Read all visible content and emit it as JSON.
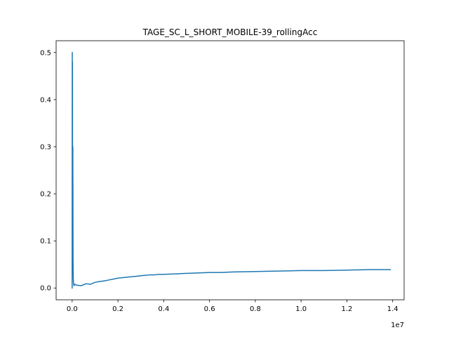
{
  "chart_data": {
    "type": "line",
    "title": "TAGE_SC_L_SHORT_MOBILE-39_rollingAcc",
    "xlabel": "",
    "ylabel": "",
    "x_offset_label": "1e7",
    "xlim": [
      -0.07,
      1.45
    ],
    "ylim": [
      -0.025,
      0.525
    ],
    "x_ticks": [
      0.0,
      0.2,
      0.4,
      0.6,
      0.8,
      1.0,
      1.2,
      1.4
    ],
    "x_tick_labels": [
      "0.0",
      "0.2",
      "0.4",
      "0.6",
      "0.8",
      "1.0",
      "1.2",
      "1.4"
    ],
    "y_ticks": [
      0.0,
      0.1,
      0.2,
      0.3,
      0.4,
      0.5
    ],
    "y_tick_labels": [
      "0.0",
      "0.1",
      "0.2",
      "0.3",
      "0.4",
      "0.5"
    ],
    "grid": false,
    "series": [
      {
        "color": "#1f77b4",
        "x": [
          0.0,
          0.0005,
          0.001,
          0.0015,
          0.002,
          0.003,
          0.004,
          0.005,
          0.006,
          0.008,
          0.012,
          0.02,
          0.04,
          0.06,
          0.08,
          0.1,
          0.12,
          0.14,
          0.16,
          0.18,
          0.2,
          0.22,
          0.24,
          0.26,
          0.28,
          0.3,
          0.32,
          0.34,
          0.36,
          0.38,
          0.4,
          0.45,
          0.5,
          0.55,
          0.6,
          0.65,
          0.7,
          0.8,
          0.9,
          1.0,
          1.1,
          1.2,
          1.3,
          1.39
        ],
        "y": [
          0.0,
          0.5,
          0.2,
          0.48,
          0.1,
          0.3,
          0.06,
          0.02,
          0.01,
          0.005,
          0.008,
          0.006,
          0.005,
          0.009,
          0.008,
          0.012,
          0.014,
          0.015,
          0.017,
          0.019,
          0.021,
          0.022,
          0.023,
          0.024,
          0.025,
          0.026,
          0.027,
          0.028,
          0.028,
          0.029,
          0.029,
          0.03,
          0.031,
          0.032,
          0.033,
          0.033,
          0.034,
          0.035,
          0.036,
          0.037,
          0.037,
          0.038,
          0.039,
          0.039
        ]
      }
    ]
  }
}
